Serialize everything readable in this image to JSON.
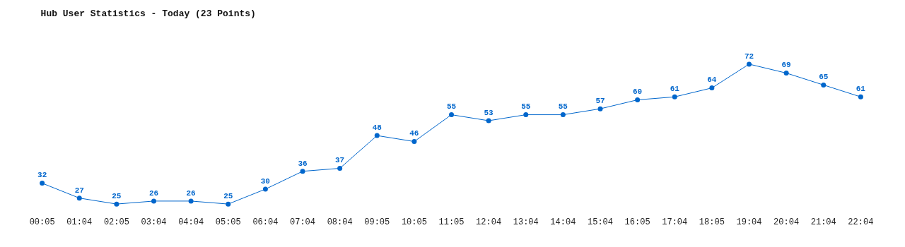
{
  "chart_data": {
    "type": "line",
    "title": "Hub User Statistics - Today (23 Points)",
    "categories": [
      "00:05",
      "01:04",
      "02:05",
      "03:04",
      "04:04",
      "05:05",
      "06:04",
      "07:04",
      "08:04",
      "09:05",
      "10:05",
      "11:05",
      "12:04",
      "13:04",
      "14:04",
      "15:04",
      "16:05",
      "17:04",
      "18:05",
      "19:04",
      "20:04",
      "21:04",
      "22:04"
    ],
    "values": [
      32,
      27,
      25,
      26,
      26,
      25,
      30,
      36,
      37,
      48,
      46,
      55,
      53,
      55,
      55,
      57,
      60,
      61,
      64,
      72,
      69,
      65,
      61
    ],
    "color": "#0066cc",
    "marker": "circle",
    "line_style": "solid",
    "data_labels": true,
    "legend": false,
    "tick_labels": "x"
  }
}
